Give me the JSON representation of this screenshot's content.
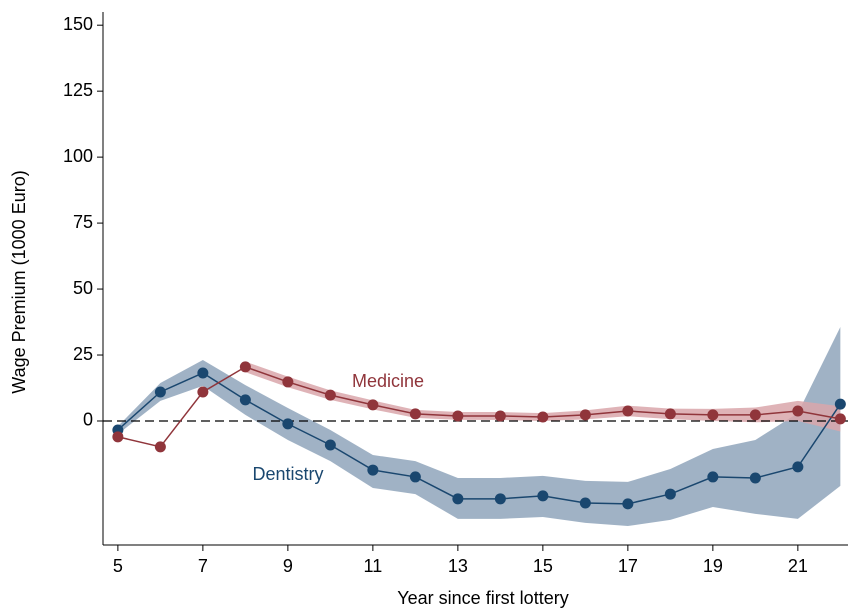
{
  "chart_data": {
    "type": "line",
    "x_label": "Year since first lottery",
    "y_label": "Wage Premium (1000 Euro)",
    "x": [
      5,
      6,
      7,
      8,
      9,
      10,
      11,
      12,
      13,
      14,
      15,
      16,
      17,
      18,
      19,
      20,
      21,
      22
    ],
    "series": [
      {
        "name": "Dentistry",
        "color": "#1a476f",
        "band_color": "#8fa5bb",
        "values": [
          -3.4,
          11,
          18.2,
          8,
          -1.1,
          -9.1,
          -18.6,
          -21.2,
          -29.5,
          -29.5,
          -28.4,
          -31.1,
          -31.4,
          -27.7,
          -21.2,
          -21.6,
          -17.4,
          6.4
        ],
        "upper": [
          -2,
          14.4,
          23.1,
          13.6,
          4.9,
          -3.4,
          -12.9,
          -15.2,
          -21.6,
          -21.6,
          -20.8,
          -22.7,
          -23.1,
          -18.2,
          -10.6,
          -7.2,
          3,
          35.6
        ],
        "lower": [
          -5,
          7.6,
          13.3,
          2.3,
          -7.2,
          -15.2,
          -25.4,
          -27.7,
          -37.1,
          -37.1,
          -36.4,
          -38.6,
          -39.8,
          -37.5,
          -32.6,
          -35.2,
          -37.1,
          -24.6
        ]
      },
      {
        "name": "Medicine",
        "color": "#90353b",
        "band_color": "#d9a6aa",
        "values": [
          -6,
          -9.8,
          11,
          20.5,
          14.8,
          9.8,
          6.1,
          2.7,
          1.9,
          1.9,
          1.5,
          2.3,
          3.8,
          2.7,
          2.3,
          2.3,
          3.8,
          0.8
        ],
        "upper": [
          null,
          null,
          null,
          22.5,
          16.8,
          11.6,
          7.8,
          4.2,
          3.4,
          3.4,
          3,
          4,
          5.8,
          4.7,
          4.6,
          5.1,
          7.6,
          5.6
        ],
        "lower": [
          null,
          null,
          null,
          18.5,
          12.8,
          8,
          4.4,
          1.2,
          0.4,
          0.4,
          0,
          0.6,
          1.8,
          0.7,
          0,
          -0.5,
          0,
          -4
        ]
      }
    ],
    "hline": 0,
    "xlim": [
      4.65,
      22.18
    ],
    "ylim": [
      -47,
      155
    ],
    "xticks": [
      5,
      7,
      9,
      11,
      13,
      15,
      17,
      19,
      21
    ],
    "yticks": [
      0,
      25,
      50,
      75,
      100,
      125,
      150
    ]
  }
}
